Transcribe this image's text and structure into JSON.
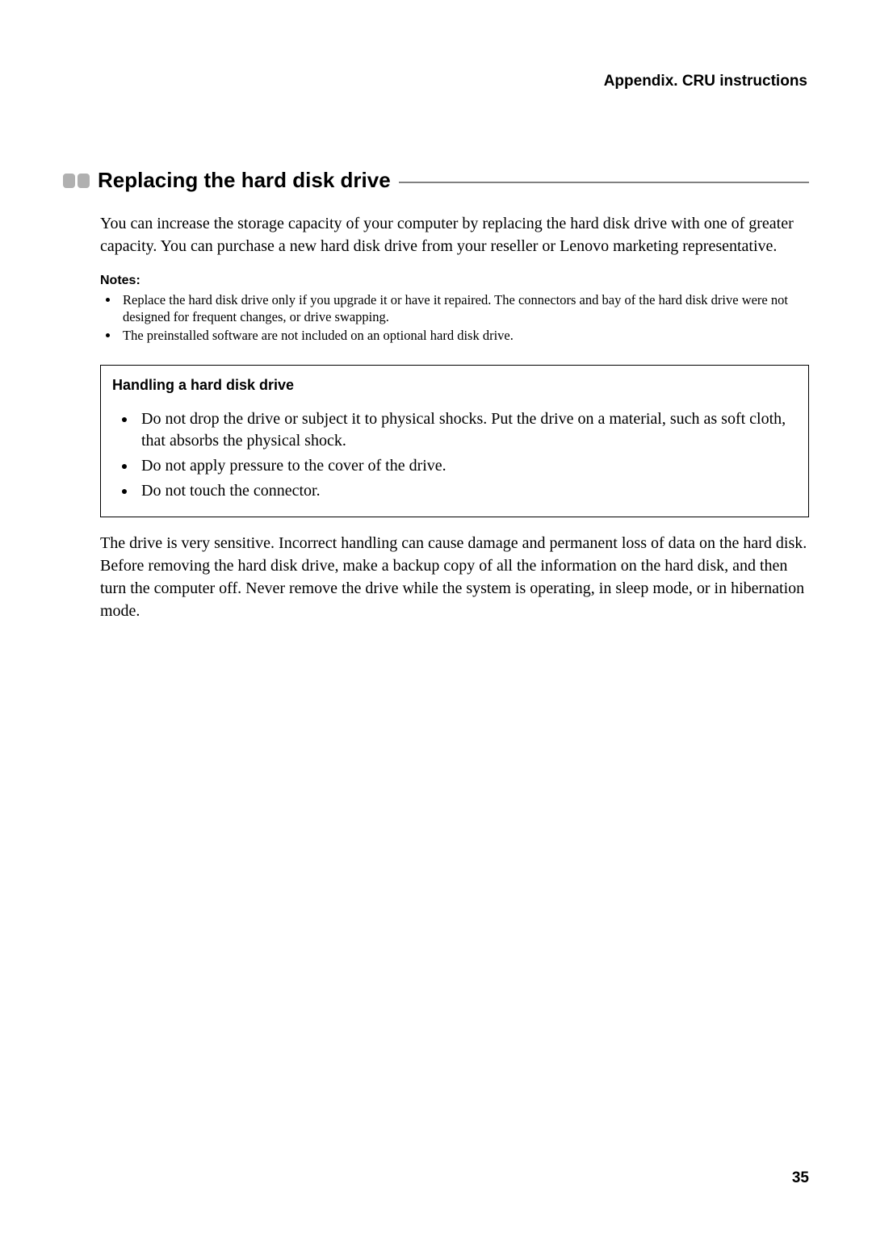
{
  "header": {
    "right": "Appendix. CRU instructions"
  },
  "section": {
    "title": "Replacing the hard disk drive",
    "intro": "You can increase the storage capacity of your computer by replacing the hard disk drive with one of greater capacity. You can purchase a new hard disk drive from your reseller or Lenovo marketing representative."
  },
  "notes": {
    "label": "Notes:",
    "items": [
      "Replace the hard disk drive only if you upgrade it or have it repaired. The connectors and bay of the hard disk drive were not designed for frequent changes, or drive swapping.",
      "The preinstalled software are not included on an optional hard disk drive."
    ]
  },
  "handling": {
    "title": "Handling a hard disk drive",
    "items": [
      "Do not drop the drive or subject it to physical shocks. Put the drive on a material, such as soft cloth, that absorbs the physical shock.",
      "Do not apply pressure to the cover of the drive.",
      "Do not touch the connector."
    ]
  },
  "closing": "The drive is very sensitive. Incorrect handling can cause damage and permanent loss of data on the hard disk. Before removing the hard disk drive, make a backup copy of all the information on the hard disk, and then turn the computer off. Never remove the drive while the system is operating, in sleep mode, or in hibernation mode.",
  "page_number": "35",
  "colors": {
    "box_fill": "#b0b0b0",
    "line_color": "#808080",
    "text_color": "#000000",
    "background": "#ffffff"
  },
  "fonts": {
    "heading_family": "Arial, Helvetica, sans-serif",
    "body_family": "Georgia, 'Times New Roman', serif"
  }
}
